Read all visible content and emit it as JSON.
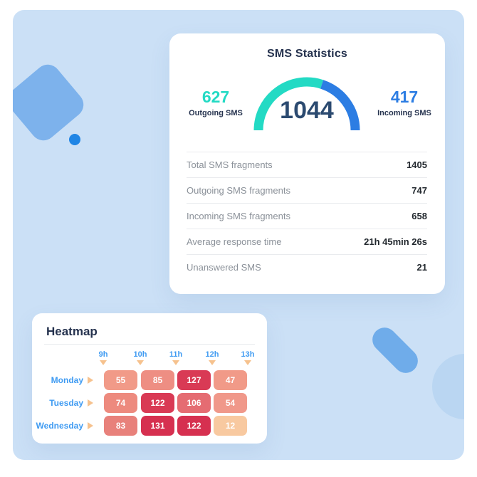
{
  "colors": {
    "page-bg": "#FFFFFF",
    "canvas-bg": "#CBE0F6",
    "shape-square": "#7DB2EC",
    "shape-dot": "#1F85E5",
    "shape-pill": "#6FACEA",
    "shape-circle": "#BAD6F2",
    "navy": "#25324E",
    "gauge-number": "#2B4A70",
    "teal": "#23DAC4",
    "blue": "#2C7DE3",
    "label-gray": "#8B9199",
    "value-dark": "#22282E",
    "divider": "#E9EBEE",
    "hm-blue": "#3F9BF2",
    "hm-triangle": "#F6C28E"
  },
  "sms_card": {
    "title": "SMS Statistics",
    "gauge_total": "1044",
    "outgoing": {
      "value": "627",
      "label": "Outgoing SMS"
    },
    "incoming": {
      "value": "417",
      "label": "Incoming SMS"
    },
    "stats_rows": [
      {
        "label": "Total SMS fragments",
        "value": "1405"
      },
      {
        "label": "Outgoing SMS fragments",
        "value": "747"
      },
      {
        "label": "Incoming SMS fragments",
        "value": "658"
      },
      {
        "label": "Average response time",
        "value": "21h 45min 26s"
      },
      {
        "label": "Unanswered SMS",
        "value": "21"
      }
    ]
  },
  "heatmap": {
    "title": "Heatmap",
    "hours": [
      "9h",
      "10h",
      "11h",
      "12h",
      "13h"
    ],
    "rows": [
      {
        "day": "Monday",
        "cells": [
          {
            "value": "55",
            "color": "#F19A88"
          },
          {
            "value": "85",
            "color": "#EE8E83"
          },
          {
            "value": "127",
            "color": "#D93A55"
          },
          {
            "value": "47",
            "color": "#F19A88"
          }
        ]
      },
      {
        "day": "Tuesday",
        "cells": [
          {
            "value": "74",
            "color": "#ED8A7E"
          },
          {
            "value": "122",
            "color": "#D93A55"
          },
          {
            "value": "106",
            "color": "#E56C72"
          },
          {
            "value": "54",
            "color": "#F0988A"
          }
        ]
      },
      {
        "day": "Wednesday",
        "cells": [
          {
            "value": "83",
            "color": "#E8817B"
          },
          {
            "value": "131",
            "color": "#D63050"
          },
          {
            "value": "122",
            "color": "#D63050"
          },
          {
            "value": "12",
            "color": "#F8C9A0"
          }
        ]
      }
    ]
  },
  "chart_data": [
    {
      "type": "gauge",
      "shape": "semicircle",
      "title": "SMS Statistics",
      "center_total": 1044,
      "series": [
        {
          "name": "Outgoing SMS",
          "value": 627,
          "color": "#23DAC4"
        },
        {
          "name": "Incoming SMS",
          "value": 417,
          "color": "#2C7DE3"
        }
      ]
    },
    {
      "type": "heatmap",
      "title": "Heatmap",
      "x_tick_labels": [
        "9h",
        "10h",
        "11h",
        "12h",
        "13h"
      ],
      "x_note": "hour labels mark the boundaries of 4 one-hour slots",
      "categories": [
        "Monday",
        "Tuesday",
        "Wednesday"
      ],
      "series": [
        {
          "name": "Monday",
          "values": [
            55,
            85,
            127,
            47
          ]
        },
        {
          "name": "Tuesday",
          "values": [
            74,
            122,
            106,
            54
          ]
        },
        {
          "name": "Wednesday",
          "values": [
            83,
            131,
            122,
            12
          ]
        }
      ]
    },
    {
      "type": "table",
      "rows": [
        [
          "Total SMS fragments",
          "1405"
        ],
        [
          "Outgoing SMS fragments",
          "747"
        ],
        [
          "Incoming SMS fragments",
          "658"
        ],
        [
          "Average response time",
          "21h 45min 26s"
        ],
        [
          "Unanswered SMS",
          "21"
        ]
      ]
    }
  ]
}
